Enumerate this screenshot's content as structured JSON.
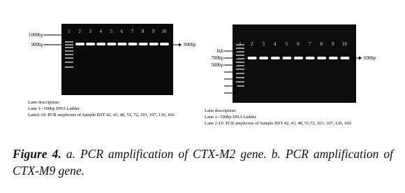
{
  "figure_a": {
    "lane_labels": [
      "1",
      "2",
      "3",
      "4",
      "5",
      "6",
      "7",
      "8",
      "9",
      "10"
    ],
    "left_markers": [
      "1000bp",
      "900bp"
    ],
    "right_marker": "900bp",
    "description": {
      "title": "Lane description:",
      "lines": [
        "Lane 1--100bp DNA Ladder",
        "Lane2-10: PCR amplicons of Sample BST 42, 43, 48, 51, 72, 103, 107, 130, 160"
      ]
    }
  },
  "figure_b": {
    "lane_labels": [
      "1",
      "2",
      "3",
      "4",
      "5",
      "6",
      "7",
      "8",
      "9",
      "10"
    ],
    "left_markers": [
      "1kb",
      "700bp",
      "500bp"
    ],
    "right_marker": "690bp",
    "description": {
      "title": "Lane description:",
      "lines": [
        "Lane 1--500bp DNA Ladder",
        "Lane 2-10: PCR amplicons of Sample BST 42, 43, 48, 51,72, 103, 107, 130, 160"
      ]
    }
  },
  "caption": {
    "label": "Figure 4.",
    "text": "a. PCR amplification of CTX-M2 gene. b. PCR amplification of CTX-M9 gene."
  }
}
